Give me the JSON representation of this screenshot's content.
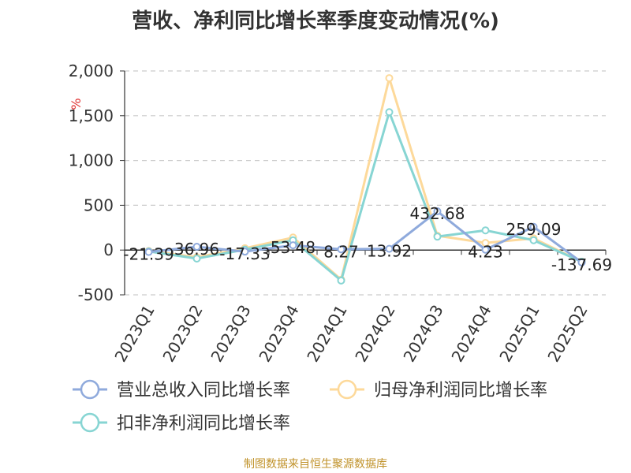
{
  "chart_data": {
    "type": "line",
    "title": "营收、净利同比增长率季度变动情况(%)",
    "unit": "%",
    "categories": [
      "2023Q1",
      "2023Q2",
      "2023Q3",
      "2023Q4",
      "2024Q1",
      "2024Q2",
      "2024Q3",
      "2024Q4",
      "2025Q1",
      "2025Q2"
    ],
    "ylim": [
      -500,
      2000
    ],
    "yticks": [
      -500,
      0,
      500,
      1000,
      1500,
      2000
    ],
    "ytick_labels": [
      "-500",
      "0",
      "500",
      "1,000",
      "1,500",
      "2,000"
    ],
    "grid": true,
    "legend_position": "bottom",
    "series": [
      {
        "name": "营业总收入同比增长率",
        "color": "#8faadc",
        "values": [
          -21.39,
          36.96,
          -17.33,
          53.48,
          8.27,
          13.92,
          432.68,
          4.23,
          259.09,
          -137.69
        ],
        "labels": [
          "-21.39",
          "36.96",
          "-17.33",
          "53.48",
          "8.27",
          "13.92",
          "432.68",
          "4.23",
          "259.09",
          "-137.69"
        ]
      },
      {
        "name": "归母净利润同比增长率",
        "color": "#fdd99a",
        "values": [
          -10,
          -80,
          20,
          140,
          -330,
          1920,
          160,
          80,
          130,
          -130
        ]
      },
      {
        "name": "扣非净利润同比增长率",
        "color": "#87d5d3",
        "values": [
          -15,
          -95,
          5,
          110,
          -340,
          1540,
          150,
          220,
          110,
          -130
        ]
      }
    ]
  },
  "source": "制图数据来自恒生聚源数据库"
}
